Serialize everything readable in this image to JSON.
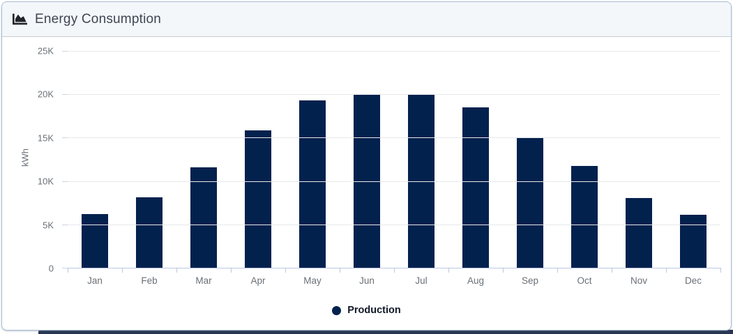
{
  "card": {
    "title": "Energy Consumption"
  },
  "chart_data": {
    "type": "bar",
    "title": "Energy Consumption",
    "categories": [
      "Jan",
      "Feb",
      "Mar",
      "Apr",
      "May",
      "Jun",
      "Jul",
      "Aug",
      "Sep",
      "Oct",
      "Nov",
      "Dec"
    ],
    "series": [
      {
        "name": "Production",
        "values": [
          6200,
          8100,
          11600,
          15800,
          19300,
          20000,
          19900,
          18500,
          15000,
          11700,
          8000,
          6100
        ]
      }
    ],
    "xlabel": "",
    "ylabel": "kWh",
    "ylim": [
      0,
      25000
    ],
    "ytick_labels": [
      "0",
      "5K",
      "10K",
      "15K",
      "20K",
      "25K"
    ],
    "grid": true,
    "legend_position": "bottom"
  },
  "colors": {
    "bar": "#02214d",
    "grid_line": "#e7e8ea",
    "axis_line": "#bcc8e0",
    "tick_text": "#6a7077",
    "title_text": "#3e4653",
    "legend_text": "#101828",
    "header_bg": "#f3f7fa",
    "card_border": "#a9bed4",
    "header_border": "#c8cdd2",
    "icon": "#212529",
    "bottom_strip": "#263550"
  }
}
